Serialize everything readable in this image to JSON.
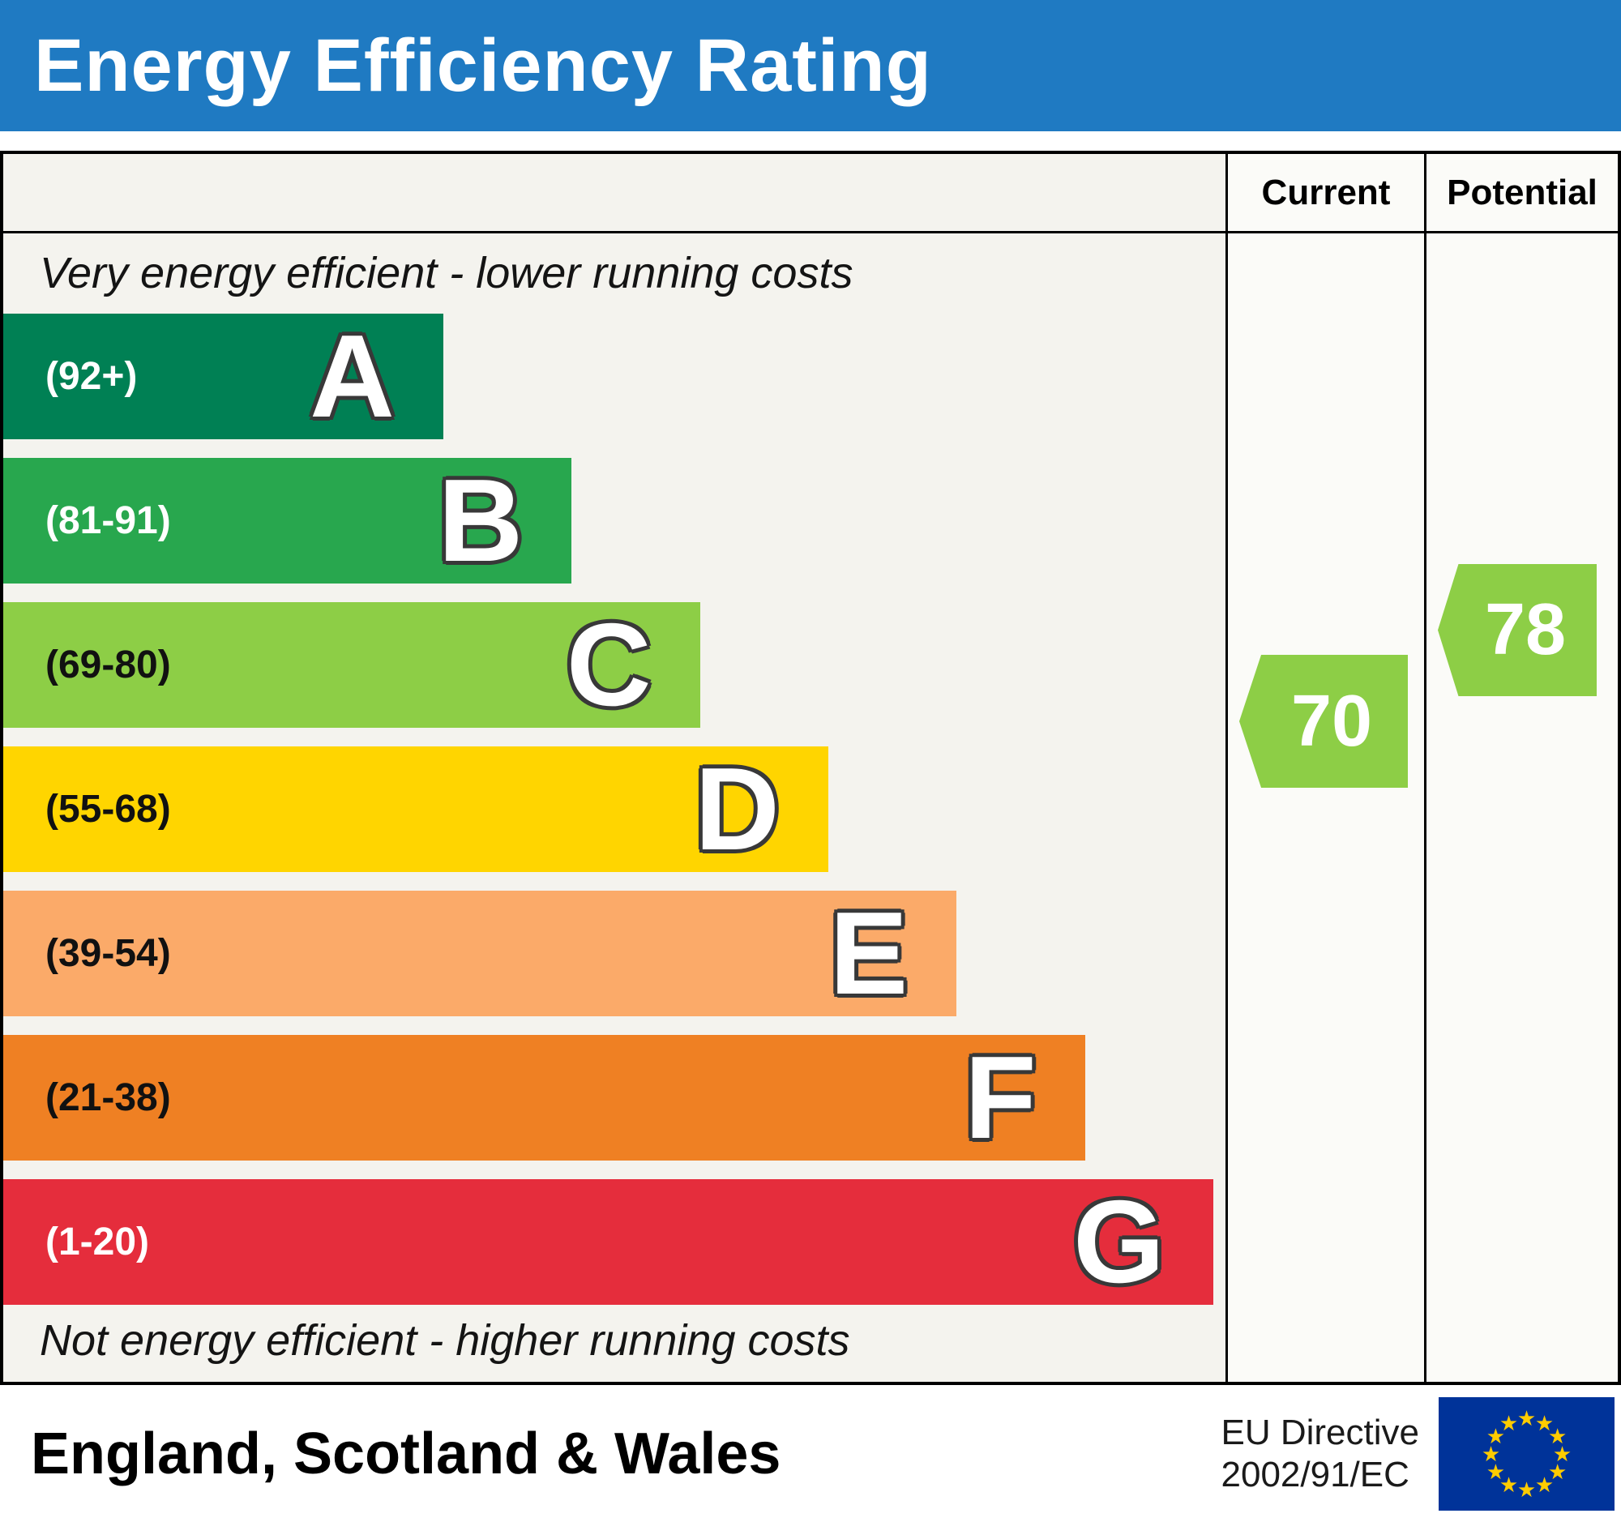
{
  "header": {
    "title": "Energy Efficiency Rating"
  },
  "columns": {
    "current_label": "Current",
    "potential_label": "Potential"
  },
  "notes": {
    "top": "Very energy efficient - lower running costs",
    "bottom": "Not energy efficient - higher running costs"
  },
  "bands": [
    {
      "letter": "A",
      "range": "(92+)",
      "color": "#008054",
      "text_color": "#ffffff",
      "width_pct": 36
    },
    {
      "letter": "B",
      "range": "(81-91)",
      "color": "#28a74e",
      "text_color": "#ffffff",
      "width_pct": 46.5
    },
    {
      "letter": "C",
      "range": "(69-80)",
      "color": "#8dce46",
      "text_color": "#111111",
      "width_pct": 57
    },
    {
      "letter": "D",
      "range": "(55-68)",
      "color": "#ffd500",
      "text_color": "#111111",
      "width_pct": 67.5
    },
    {
      "letter": "E",
      "range": "(39-54)",
      "color": "#fbaa69",
      "text_color": "#111111",
      "width_pct": 78
    },
    {
      "letter": "F",
      "range": "(21-38)",
      "color": "#ef8023",
      "text_color": "#111111",
      "width_pct": 88.5
    },
    {
      "letter": "G",
      "range": "(1-20)",
      "color": "#e52d3c",
      "text_color": "#ffffff",
      "width_pct": 99
    }
  ],
  "ratings": {
    "current": {
      "value": "70",
      "color": "#8dce46",
      "band": "C"
    },
    "potential": {
      "value": "78",
      "color": "#8dce46",
      "band": "C"
    }
  },
  "footer": {
    "region": "England, Scotland & Wales",
    "directive": [
      "EU Directive",
      "2002/91/EC"
    ]
  },
  "colors": {
    "header_bg": "#1f7ac2",
    "eu_flag_field": "#003399",
    "eu_flag_stars": "#ffcc00"
  },
  "chart_data": {
    "type": "bar",
    "title": "Energy Efficiency Rating",
    "categories": [
      "A",
      "B",
      "C",
      "D",
      "E",
      "F",
      "G"
    ],
    "band_score_ranges": [
      "92+",
      "81-91",
      "69-80",
      "55-68",
      "39-54",
      "21-38",
      "1-20"
    ],
    "band_colors": [
      "#008054",
      "#28a74e",
      "#8dce46",
      "#ffd500",
      "#fbaa69",
      "#ef8023",
      "#e52d3c"
    ],
    "bar_relative_lengths": [
      36,
      46.5,
      57,
      67.5,
      78,
      88.5,
      99
    ],
    "series": [
      {
        "name": "Current",
        "values": [
          70
        ],
        "band": "C"
      },
      {
        "name": "Potential",
        "values": [
          78
        ],
        "band": "C"
      }
    ],
    "score_scale": [
      1,
      100
    ],
    "top_annotation": "Very energy efficient - lower running costs",
    "bottom_annotation": "Not energy efficient - higher running costs",
    "region": "England, Scotland & Wales",
    "directive": "EU Directive 2002/91/EC",
    "legend_position": "none",
    "grid": false
  }
}
